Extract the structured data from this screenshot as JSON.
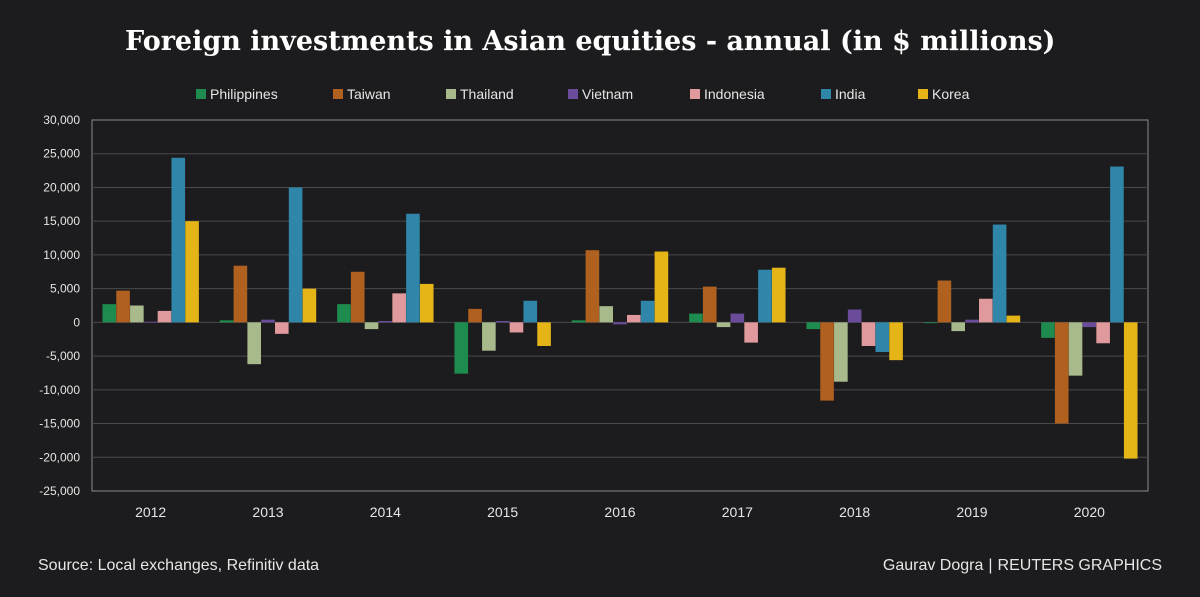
{
  "chart_data": {
    "type": "bar",
    "title": "Foreign investments in Asian equities - annual (in $ millions)",
    "categories": [
      "2012",
      "2013",
      "2014",
      "2015",
      "2016",
      "2017",
      "2018",
      "2019",
      "2020"
    ],
    "ylim": [
      -25000,
      30000
    ],
    "yticks": [
      30000,
      25000,
      20000,
      15000,
      10000,
      5000,
      0,
      -5000,
      -10000,
      -15000,
      -20000,
      -25000
    ],
    "ytick_labels": [
      "30,000",
      "25,000",
      "20,000",
      "15,000",
      "10,000",
      "5,000",
      "0",
      "-5,000",
      "-10,000",
      "-15,000",
      "-20,000",
      "-25,000"
    ],
    "grid": true,
    "legend_position": "top",
    "series": [
      {
        "name": "Philippines",
        "color": "#1e8c4e",
        "values": [
          2700,
          300,
          2700,
          -7600,
          300,
          1300,
          -1000,
          -100,
          -2300
        ]
      },
      {
        "name": "Taiwan",
        "color": "#b0601f",
        "values": [
          4700,
          8400,
          7500,
          2000,
          10700,
          5300,
          -11600,
          6200,
          -15000
        ]
      },
      {
        "name": "Thailand",
        "color": "#a8b98c",
        "values": [
          2500,
          -6200,
          -1000,
          -4200,
          2400,
          -700,
          -8800,
          -1300,
          -7900
        ]
      },
      {
        "name": "Vietnam",
        "color": "#6b4c9a",
        "values": [
          100,
          400,
          200,
          200,
          -300,
          1300,
          1900,
          400,
          -700
        ]
      },
      {
        "name": "Indonesia",
        "color": "#e09a9d",
        "values": [
          1700,
          -1700,
          4300,
          -1500,
          1100,
          -3000,
          -3500,
          3500,
          -3100
        ]
      },
      {
        "name": "India",
        "color": "#2f86a8",
        "values": [
          24400,
          20000,
          16100,
          3200,
          3200,
          7800,
          -4400,
          14500,
          23100
        ]
      },
      {
        "name": "Korea",
        "color": "#e5b416",
        "values": [
          15000,
          5000,
          5700,
          -3500,
          10500,
          8100,
          -5600,
          1000,
          -20200
        ]
      }
    ]
  },
  "footer": {
    "source": "Source: Local exchanges, Refinitiv data",
    "author": "Gaurav Dogra",
    "separator": "|",
    "org": "REUTERS GRAPHICS"
  }
}
